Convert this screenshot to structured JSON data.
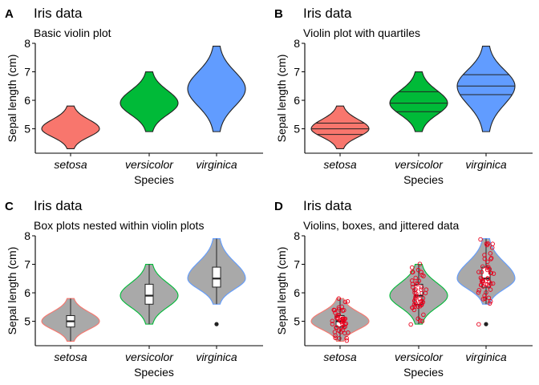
{
  "figure": {
    "panels": [
      {
        "tag": "A",
        "title": "Iris data",
        "subtitle": "Basic violin plot",
        "style": "basic"
      },
      {
        "tag": "B",
        "title": "Iris data",
        "subtitle": "Violin plot with quartiles",
        "style": "quartiles"
      },
      {
        "tag": "C",
        "title": "Iris data",
        "subtitle": "Box plots nested within violin plots",
        "style": "box"
      },
      {
        "tag": "D",
        "title": "Iris data",
        "subtitle": "Violins, boxes, and jittered data",
        "style": "jitter"
      }
    ]
  },
  "chart_data": [
    {
      "type": "violin",
      "title": "Iris data",
      "subtitle": "Basic violin plot",
      "xlabel": "Species",
      "ylabel": "Sepal length (cm)",
      "categories": [
        "setosa",
        "versicolor",
        "virginica"
      ],
      "yticks": [
        5,
        6,
        7,
        8
      ],
      "ylim": [
        4.2,
        8.0
      ],
      "grid": false,
      "legend": "none",
      "fill_colors": [
        "#F8766D",
        "#00BA38",
        "#619CFF"
      ],
      "outline_color": "#222222",
      "series": [
        {
          "category": "setosa",
          "min": 4.3,
          "q1": 4.8,
          "median": 5.0,
          "q3": 5.2,
          "max": 5.8,
          "density_peak": 5.0
        },
        {
          "category": "versicolor",
          "min": 4.9,
          "q1": 5.6,
          "median": 5.9,
          "q3": 6.3,
          "max": 7.0,
          "density_peak": 5.9
        },
        {
          "category": "virginica",
          "min": 4.9,
          "q1": 6.2,
          "median": 6.5,
          "q3": 6.9,
          "max": 7.9,
          "density_peak": 6.4
        }
      ]
    },
    {
      "type": "violin",
      "title": "Iris data",
      "subtitle": "Violin plot with quartiles",
      "xlabel": "Species",
      "ylabel": "Sepal length (cm)",
      "categories": [
        "setosa",
        "versicolor",
        "virginica"
      ],
      "yticks": [
        5,
        6,
        7,
        8
      ],
      "ylim": [
        4.2,
        8.0
      ],
      "grid": false,
      "legend": "none",
      "draw_quantiles": [
        0.25,
        0.5,
        0.75
      ],
      "fill_colors": [
        "#F8766D",
        "#00BA38",
        "#619CFF"
      ],
      "outline_color": "#222222",
      "series": [
        {
          "category": "setosa",
          "min": 4.3,
          "q1": 4.8,
          "median": 5.0,
          "q3": 5.2,
          "max": 5.8
        },
        {
          "category": "versicolor",
          "min": 4.9,
          "q1": 5.6,
          "median": 5.9,
          "q3": 6.3,
          "max": 7.0
        },
        {
          "category": "virginica",
          "min": 4.9,
          "q1": 6.2,
          "median": 6.5,
          "q3": 6.9,
          "max": 7.9
        }
      ]
    },
    {
      "type": "violin",
      "title": "Iris data",
      "subtitle": "Box plots nested within violin plots",
      "xlabel": "Species",
      "ylabel": "Sepal length (cm)",
      "categories": [
        "setosa",
        "versicolor",
        "virginica"
      ],
      "yticks": [
        5,
        6,
        7,
        8
      ],
      "ylim": [
        4.2,
        8.0
      ],
      "grid": false,
      "legend": "none",
      "violin_fill": "#A9A9A9",
      "outline_colors": [
        "#F8766D",
        "#00BA38",
        "#619CFF"
      ],
      "box_fill": "#ffffff",
      "series": [
        {
          "category": "setosa",
          "min": 4.3,
          "q1": 4.8,
          "median": 5.0,
          "q3": 5.2,
          "max": 5.8,
          "outliers": []
        },
        {
          "category": "versicolor",
          "min": 4.9,
          "q1": 5.6,
          "median": 5.9,
          "q3": 6.3,
          "max": 7.0,
          "outliers": []
        },
        {
          "category": "virginica",
          "min": 5.6,
          "q1": 6.2,
          "median": 6.5,
          "q3": 6.9,
          "max": 7.9,
          "outliers": [
            4.9
          ]
        }
      ]
    },
    {
      "type": "violin",
      "title": "Iris data",
      "subtitle": "Violins, boxes, and jittered data",
      "xlabel": "Species",
      "ylabel": "Sepal length (cm)",
      "categories": [
        "setosa",
        "versicolor",
        "virginica"
      ],
      "yticks": [
        5,
        6,
        7,
        8
      ],
      "ylim": [
        4.2,
        8.0
      ],
      "grid": false,
      "legend": "none",
      "violin_fill": "#A9A9A9",
      "outline_colors": [
        "#F8766D",
        "#00BA38",
        "#619CFF"
      ],
      "box_fill": "#ffffff",
      "jitter_color": "#E8001C",
      "series": [
        {
          "category": "setosa",
          "min": 4.3,
          "q1": 4.8,
          "median": 5.0,
          "q3": 5.2,
          "max": 5.8,
          "outliers": [],
          "values": [
            5.1,
            4.9,
            4.7,
            4.6,
            5.0,
            5.4,
            4.6,
            5.0,
            4.4,
            4.9,
            5.4,
            4.8,
            4.8,
            4.3,
            5.8,
            5.7,
            5.4,
            5.1,
            5.7,
            5.1,
            5.4,
            5.1,
            4.6,
            5.1,
            4.8,
            5.0,
            5.0,
            5.2,
            5.2,
            4.7,
            4.8,
            5.4,
            5.2,
            5.5,
            4.9,
            5.0,
            5.5,
            4.9,
            4.4,
            5.1,
            5.0,
            4.5,
            4.4,
            5.0,
            5.1,
            4.8,
            5.1,
            4.6,
            5.3,
            5.0
          ]
        },
        {
          "category": "versicolor",
          "min": 4.9,
          "q1": 5.6,
          "median": 5.9,
          "q3": 6.3,
          "max": 7.0,
          "outliers": [],
          "values": [
            7.0,
            6.4,
            6.9,
            5.5,
            6.5,
            5.7,
            6.3,
            4.9,
            6.6,
            5.2,
            5.0,
            5.9,
            6.0,
            6.1,
            5.6,
            6.7,
            5.6,
            5.8,
            6.2,
            5.6,
            5.9,
            6.1,
            6.3,
            6.1,
            6.4,
            6.6,
            6.8,
            6.7,
            6.0,
            5.7,
            5.5,
            5.5,
            5.8,
            6.0,
            5.4,
            6.0,
            6.7,
            6.3,
            5.6,
            5.5,
            5.5,
            6.1,
            5.8,
            5.0,
            5.6,
            5.7,
            5.7,
            6.2,
            5.1,
            5.7
          ]
        },
        {
          "category": "virginica",
          "min": 5.6,
          "q1": 6.2,
          "median": 6.5,
          "q3": 6.9,
          "max": 7.9,
          "outliers": [
            4.9
          ],
          "values": [
            6.3,
            5.8,
            7.1,
            6.3,
            6.5,
            7.6,
            4.9,
            7.3,
            6.7,
            7.2,
            6.5,
            6.4,
            6.8,
            5.7,
            5.8,
            6.4,
            6.5,
            7.7,
            7.7,
            6.0,
            6.9,
            5.6,
            7.7,
            6.3,
            6.7,
            7.2,
            6.2,
            6.1,
            6.4,
            7.2,
            7.4,
            7.9,
            6.4,
            6.3,
            6.1,
            7.7,
            6.3,
            6.4,
            6.0,
            6.9,
            6.7,
            6.9,
            5.8,
            6.8,
            6.7,
            6.7,
            6.3,
            6.5,
            6.2,
            5.9
          ]
        }
      ]
    }
  ]
}
